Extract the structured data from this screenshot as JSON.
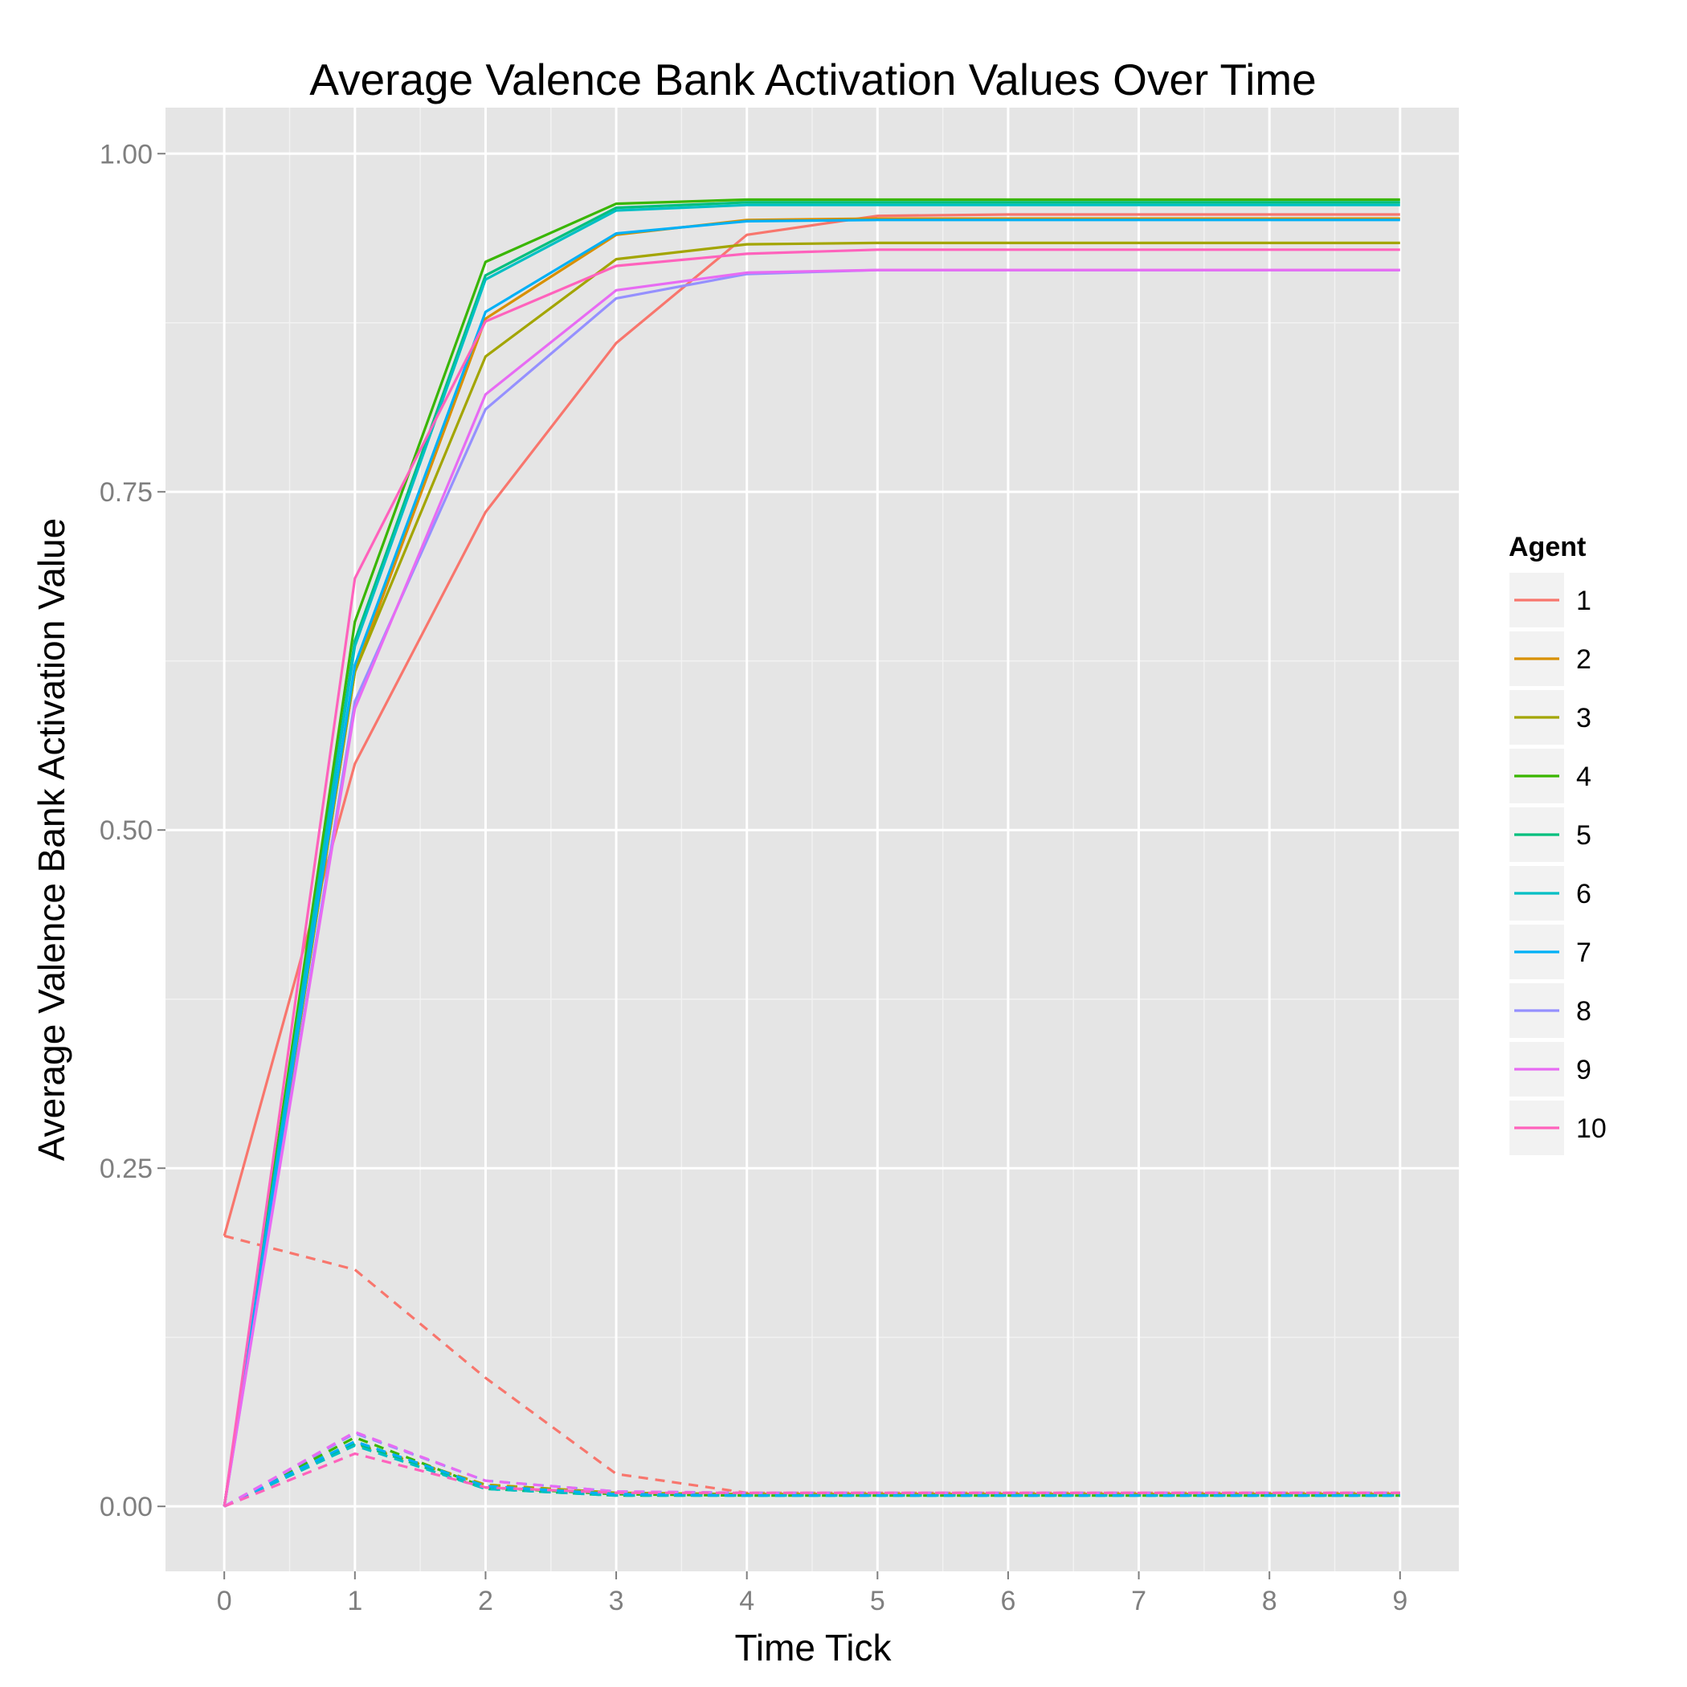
{
  "chart_data": {
    "type": "line",
    "title": "Average Valence Bank Activation Values Over Time",
    "xlabel": "Time Tick",
    "ylabel": "Average Valence Bank Activation Value",
    "xlim": [
      -0.45,
      9.45
    ],
    "ylim": [
      -0.048,
      1.034
    ],
    "x_ticks": [
      "0",
      "1",
      "2",
      "3",
      "4",
      "5",
      "6",
      "7",
      "8",
      "9"
    ],
    "y_ticks": [
      "0.00",
      "0.25",
      "0.50",
      "0.75",
      "1.00"
    ],
    "grid": true,
    "legend": {
      "title": "Agent",
      "placement": "right"
    },
    "x": [
      0,
      1,
      2,
      3,
      4,
      5,
      6,
      7,
      8,
      9
    ],
    "series": [
      {
        "name": "1",
        "color": "#F8766D",
        "solid": [
          0.2,
          0.549,
          0.735,
          0.86,
          0.94,
          0.954,
          0.955,
          0.955,
          0.955,
          0.955
        ],
        "dashed": [
          0.2,
          0.175,
          0.095,
          0.024,
          0.01,
          0.01,
          0.01,
          0.01,
          0.01,
          0.01
        ]
      },
      {
        "name": "2",
        "color": "#D89000",
        "solid": [
          0.0,
          0.617,
          0.878,
          0.94,
          0.951,
          0.952,
          0.952,
          0.952,
          0.952,
          0.952
        ],
        "dashed": [
          0.0,
          0.047,
          0.016,
          0.01,
          0.009,
          0.009,
          0.009,
          0.009,
          0.009,
          0.009
        ]
      },
      {
        "name": "3",
        "color": "#A3A500",
        "solid": [
          0.0,
          0.617,
          0.85,
          0.922,
          0.933,
          0.934,
          0.934,
          0.934,
          0.934,
          0.934
        ],
        "dashed": [
          0.0,
          0.046,
          0.016,
          0.01,
          0.009,
          0.009,
          0.009,
          0.009,
          0.009,
          0.009
        ]
      },
      {
        "name": "4",
        "color": "#39B600",
        "solid": [
          0.0,
          0.654,
          0.92,
          0.963,
          0.966,
          0.966,
          0.966,
          0.966,
          0.966,
          0.966
        ],
        "dashed": [
          0.0,
          0.051,
          0.014,
          0.009,
          0.008,
          0.008,
          0.008,
          0.008,
          0.008,
          0.008
        ]
      },
      {
        "name": "5",
        "color": "#00BF7D",
        "solid": [
          0.0,
          0.64,
          0.91,
          0.96,
          0.964,
          0.964,
          0.964,
          0.964,
          0.964,
          0.964
        ],
        "dashed": [
          0.0,
          0.047,
          0.013,
          0.008,
          0.008,
          0.008,
          0.008,
          0.008,
          0.008,
          0.008
        ]
      },
      {
        "name": "6",
        "color": "#00BFC4",
        "solid": [
          0.0,
          0.636,
          0.907,
          0.958,
          0.962,
          0.962,
          0.962,
          0.962,
          0.962,
          0.962
        ],
        "dashed": [
          0.0,
          0.045,
          0.013,
          0.008,
          0.008,
          0.008,
          0.008,
          0.008,
          0.008,
          0.008
        ]
      },
      {
        "name": "7",
        "color": "#00B0F6",
        "solid": [
          0.0,
          0.622,
          0.883,
          0.941,
          0.95,
          0.951,
          0.951,
          0.951,
          0.951,
          0.951
        ],
        "dashed": [
          0.0,
          0.048,
          0.015,
          0.009,
          0.008,
          0.008,
          0.008,
          0.008,
          0.008,
          0.008
        ]
      },
      {
        "name": "8",
        "color": "#9590FF",
        "solid": [
          0.0,
          0.595,
          0.811,
          0.893,
          0.911,
          0.914,
          0.914,
          0.914,
          0.914,
          0.914
        ],
        "dashed": [
          0.0,
          0.054,
          0.019,
          0.011,
          0.01,
          0.01,
          0.01,
          0.01,
          0.01,
          0.01
        ]
      },
      {
        "name": "9",
        "color": "#E76BF3",
        "solid": [
          0.0,
          0.59,
          0.822,
          0.899,
          0.912,
          0.914,
          0.914,
          0.914,
          0.914,
          0.914
        ],
        "dashed": [
          0.0,
          0.055,
          0.019,
          0.011,
          0.01,
          0.01,
          0.01,
          0.01,
          0.01,
          0.01
        ]
      },
      {
        "name": "10",
        "color": "#FF62BC",
        "solid": [
          0.0,
          0.686,
          0.876,
          0.917,
          0.926,
          0.929,
          0.929,
          0.929,
          0.929,
          0.929
        ],
        "dashed": [
          0.0,
          0.039,
          0.014,
          0.01,
          0.01,
          0.01,
          0.01,
          0.01,
          0.01,
          0.01
        ]
      }
    ]
  }
}
